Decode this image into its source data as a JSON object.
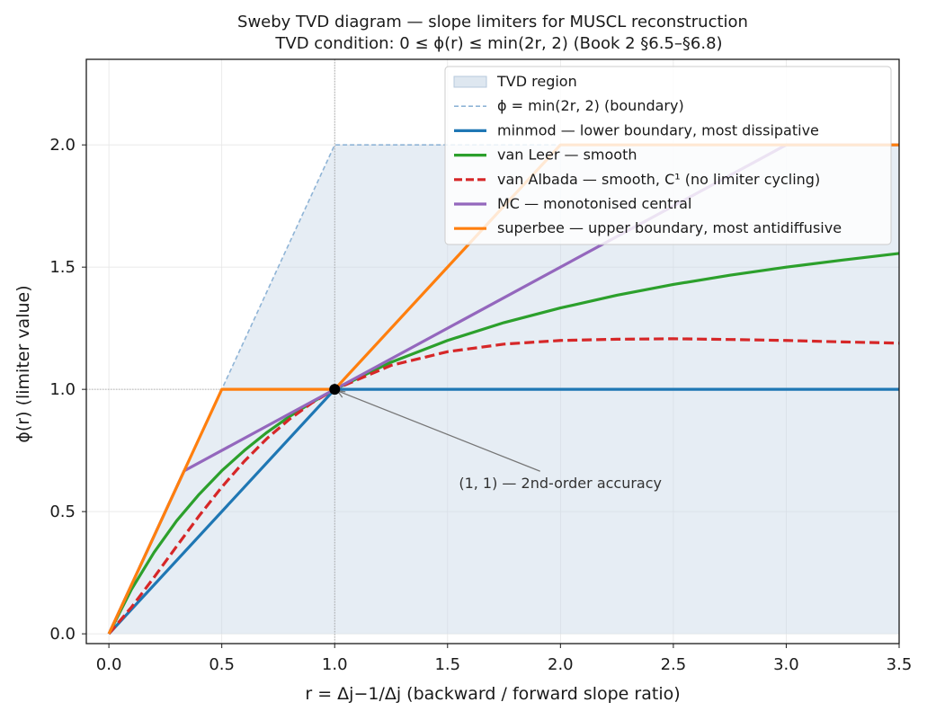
{
  "chart_data": {
    "type": "line",
    "title": "Sweby TVD diagram — slope limiters for MUSCL reconstruction",
    "subtitle": "TVD condition: 0 ≤ ϕ(r) ≤ min(2r, 2)  (Book 2 §6.5–§6.8)",
    "xlabel": "r = Δj−1/Δj  (backward / forward slope ratio)",
    "ylabel": "ϕ(r)  (limiter value)",
    "xlim": [
      -0.1,
      3.5
    ],
    "ylim": [
      -0.04,
      2.35
    ],
    "xticks": [
      0.0,
      0.5,
      1.0,
      1.5,
      2.0,
      2.5,
      3.0,
      3.5
    ],
    "xtick_labels": [
      "0.0",
      "0.5",
      "1.0",
      "1.5",
      "2.0",
      "2.5",
      "3.0",
      "3.5"
    ],
    "yticks": [
      0.0,
      0.5,
      1.0,
      1.5,
      2.0
    ],
    "ytick_labels": [
      "0.0",
      "0.5",
      "1.0",
      "1.5",
      "2.0"
    ],
    "grid": true,
    "legend_position": "top-right",
    "tvd_region": {
      "label": "TVD region",
      "color": "#c8d7e6",
      "upper": [
        [
          0.0,
          0.0
        ],
        [
          0.5,
          1.0
        ],
        [
          1.0,
          2.0
        ],
        [
          3.5,
          2.0
        ]
      ]
    },
    "boundary": {
      "name": "ϕ = min(2r, 2)  (boundary)",
      "color": "#8fb4d6",
      "points": [
        [
          0.0,
          0.0
        ],
        [
          1.0,
          2.0
        ],
        [
          3.5,
          2.0
        ]
      ]
    },
    "series": [
      {
        "name": "minmod  — lower boundary, most dissipative",
        "color": "#1f77b4",
        "dash": false,
        "points": [
          [
            0.0,
            0.0
          ],
          [
            1.0,
            1.0
          ],
          [
            3.5,
            1.0
          ]
        ]
      },
      {
        "name": "van Leer  — smooth",
        "color": "#2ca02c",
        "dash": false,
        "points": [
          [
            0.0,
            0.0
          ],
          [
            0.1,
            0.182
          ],
          [
            0.2,
            0.333
          ],
          [
            0.3,
            0.462
          ],
          [
            0.4,
            0.571
          ],
          [
            0.5,
            0.667
          ],
          [
            0.6,
            0.75
          ],
          [
            0.7,
            0.824
          ],
          [
            0.8,
            0.889
          ],
          [
            0.9,
            0.947
          ],
          [
            1.0,
            1.0
          ],
          [
            1.25,
            1.111
          ],
          [
            1.5,
            1.2
          ],
          [
            1.75,
            1.273
          ],
          [
            2.0,
            1.333
          ],
          [
            2.25,
            1.385
          ],
          [
            2.5,
            1.429
          ],
          [
            2.75,
            1.467
          ],
          [
            3.0,
            1.5
          ],
          [
            3.25,
            1.529
          ],
          [
            3.5,
            1.556
          ]
        ]
      },
      {
        "name": "van Albada  — smooth, C¹ (no limiter cycling)",
        "color": "#d62728",
        "dash": true,
        "points": [
          [
            0.0,
            0.0
          ],
          [
            0.1,
            0.109
          ],
          [
            0.2,
            0.231
          ],
          [
            0.3,
            0.358
          ],
          [
            0.4,
            0.483
          ],
          [
            0.5,
            0.6
          ],
          [
            0.6,
            0.706
          ],
          [
            0.7,
            0.799
          ],
          [
            0.8,
            0.878
          ],
          [
            0.9,
            0.945
          ],
          [
            1.0,
            1.0
          ],
          [
            1.25,
            1.098
          ],
          [
            1.5,
            1.154
          ],
          [
            1.75,
            1.185
          ],
          [
            2.0,
            1.2
          ],
          [
            2.25,
            1.205
          ],
          [
            2.5,
            1.207
          ],
          [
            2.75,
            1.204
          ],
          [
            3.0,
            1.2
          ],
          [
            3.25,
            1.194
          ],
          [
            3.5,
            1.189
          ]
        ]
      },
      {
        "name": "MC  — monotonised central",
        "color": "#9467bd",
        "dash": false,
        "points": [
          [
            0.0,
            0.0
          ],
          [
            0.3333,
            0.6667
          ],
          [
            1.0,
            1.0
          ],
          [
            3.0,
            2.0
          ],
          [
            3.5,
            2.0
          ]
        ]
      },
      {
        "name": "superbee  — upper boundary, most antidiffusive",
        "color": "#ff7f0e",
        "dash": false,
        "points": [
          [
            0.0,
            0.0
          ],
          [
            0.5,
            1.0
          ],
          [
            1.0,
            1.0
          ],
          [
            2.0,
            2.0
          ],
          [
            3.5,
            2.0
          ]
        ]
      }
    ],
    "annotation": {
      "text": "(1, 1)  — 2nd-order accuracy",
      "point": [
        1.0,
        1.0
      ],
      "text_at": [
        1.55,
        0.6
      ]
    },
    "reference_lines": {
      "x": 1.0,
      "y": 1.0
    }
  }
}
